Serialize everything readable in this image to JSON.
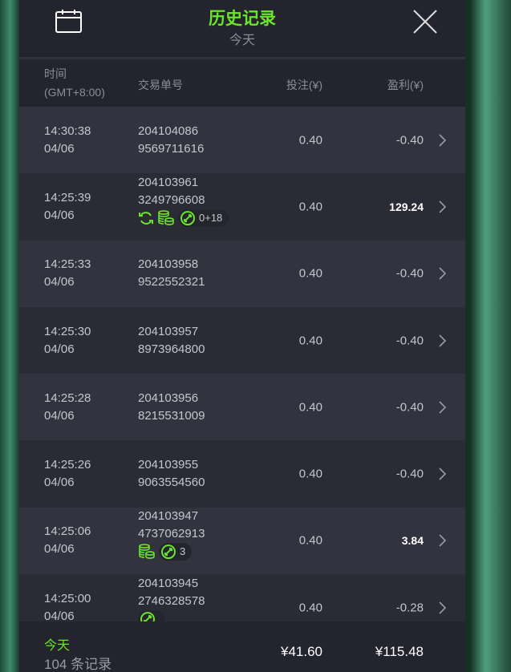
{
  "header": {
    "title": "历史记录",
    "subtitle": "今天",
    "calendar_icon": "calendar-icon",
    "close_icon": "close-icon"
  },
  "columns": {
    "time": "时间",
    "timezone": "(GMT+8:00)",
    "order": "交易单号",
    "bet": "投注(¥)",
    "profit": "盈利(¥)"
  },
  "colors": {
    "accent": "#6be52b",
    "panel": "#23242e"
  },
  "rows": [
    {
      "time": "14:30:38",
      "date": "04/06",
      "id1": "204104086",
      "id2": "9569711616",
      "bet": "0.40",
      "profit": "-0.40"
    },
    {
      "time": "14:25:39",
      "date": "04/06",
      "id1": "204103961",
      "id2": "3249796608",
      "bet": "0.40",
      "profit": "129.24",
      "badges": {
        "refresh": true,
        "coins": true,
        "pill": "0+18"
      }
    },
    {
      "time": "14:25:33",
      "date": "04/06",
      "id1": "204103958",
      "id2": "9522552321",
      "bet": "0.40",
      "profit": "-0.40"
    },
    {
      "time": "14:25:30",
      "date": "04/06",
      "id1": "204103957",
      "id2": "8973964800",
      "bet": "0.40",
      "profit": "-0.40"
    },
    {
      "time": "14:25:28",
      "date": "04/06",
      "id1": "204103956",
      "id2": "8215531009",
      "bet": "0.40",
      "profit": "-0.40"
    },
    {
      "time": "14:25:26",
      "date": "04/06",
      "id1": "204103955",
      "id2": "9063554560",
      "bet": "0.40",
      "profit": "-0.40"
    },
    {
      "time": "14:25:06",
      "date": "04/06",
      "id1": "204103947",
      "id2": "4737062913",
      "bet": "0.40",
      "profit": "3.84",
      "badges": {
        "refresh": false,
        "coins": true,
        "pill": "3"
      }
    },
    {
      "time": "14:25:00",
      "date": "04/06",
      "id1": "204103945",
      "id2": "2746328578",
      "bet": "0.40",
      "profit": "-0.28",
      "badges": {
        "refresh": false,
        "coins": false,
        "pill": ""
      }
    }
  ],
  "footer": {
    "period": "今天",
    "count": "104 条记录",
    "total_bet": "¥41.60",
    "total_profit": "¥115.48"
  }
}
